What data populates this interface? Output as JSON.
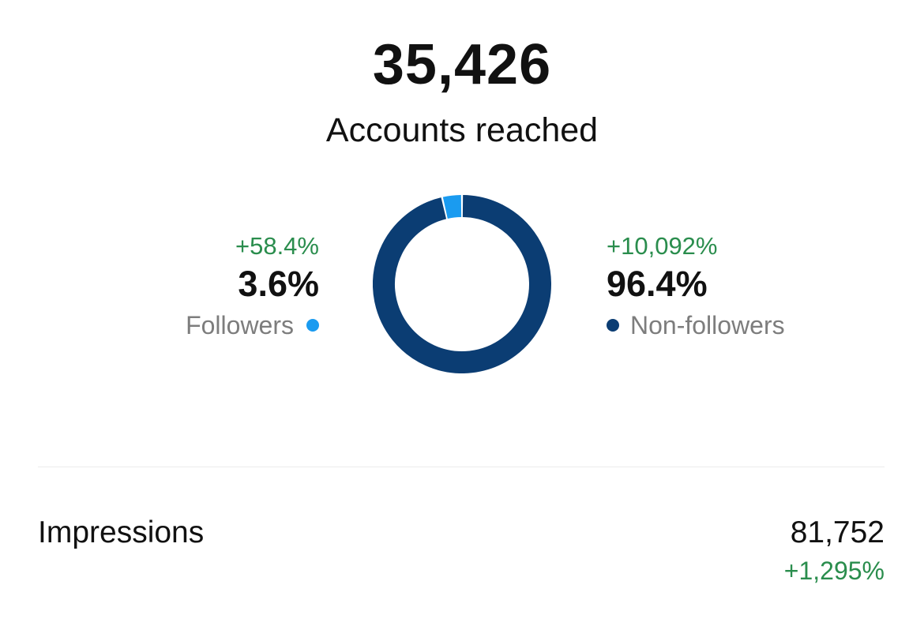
{
  "summary": {
    "total": "35,426",
    "label": "Accounts reached"
  },
  "followers": {
    "change": "+58.4%",
    "percent": "3.6%",
    "label": "Followers",
    "color": "#1a9bf0"
  },
  "non_followers": {
    "change": "+10,092%",
    "percent": "96.4%",
    "label": "Non-followers",
    "color": "#0b3d73"
  },
  "impressions": {
    "label": "Impressions",
    "value": "81,752",
    "change": "+1,295%"
  },
  "chart_data": {
    "type": "pie",
    "categories": [
      "Followers",
      "Non-followers"
    ],
    "values": [
      3.6,
      96.4
    ],
    "colors": [
      "#1a9bf0",
      "#0b3d73"
    ],
    "title": "",
    "legend": "sides"
  }
}
